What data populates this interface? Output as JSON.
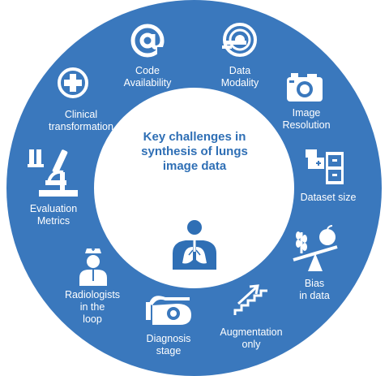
{
  "center": {
    "title": "Key challenges in synthesis of lungs image data"
  },
  "segments": [
    {
      "label": "Code\nAvailability",
      "icon": "at-sign-icon"
    },
    {
      "label": "Data\nModality",
      "icon": "scanner-icon"
    },
    {
      "label": "Image\nResolution",
      "icon": "camera-icon"
    },
    {
      "label": "Dataset size",
      "icon": "file-cabinet-icon"
    },
    {
      "label": "Bias\nin data",
      "icon": "balance-scale-icon"
    },
    {
      "label": "Augmentation\nonly",
      "icon": "stairs-arrow-icon"
    },
    {
      "label": "Diagnosis\nstage",
      "icon": "patient-head-icon"
    },
    {
      "label": "Radiologists\nin the\nloop",
      "icon": "nurse-icon"
    },
    {
      "label": "Evaluation\nMetrics",
      "icon": "microscope-icon"
    },
    {
      "label": "Clinical\ntransformation",
      "icon": "medical-cross-icon"
    }
  ],
  "colors": {
    "ring": "#3a78bd",
    "center_text": "#2f6fb5",
    "label": "#ffffff"
  }
}
